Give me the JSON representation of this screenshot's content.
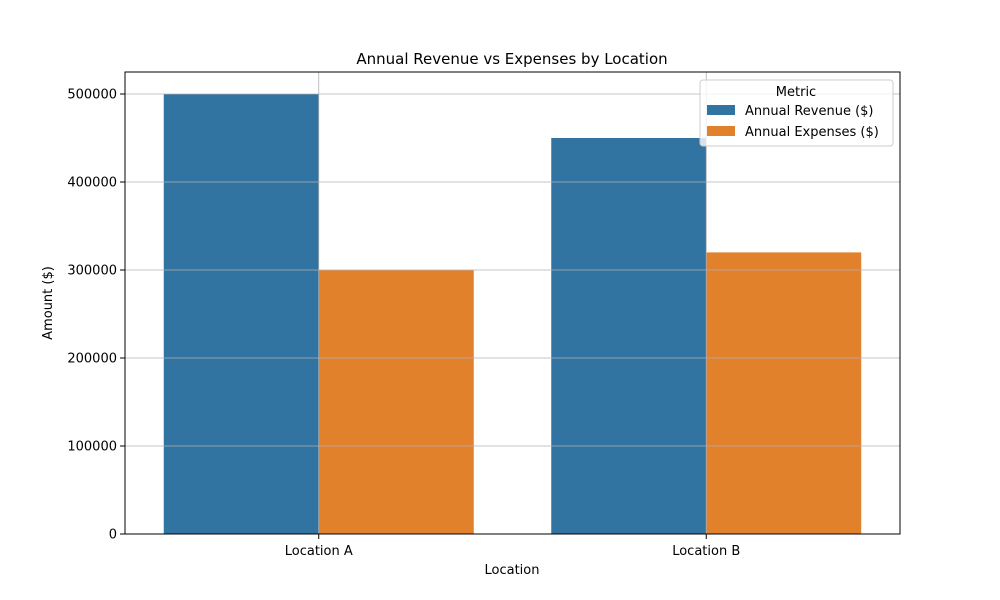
{
  "chart_data": {
    "type": "bar",
    "title": "Annual Revenue vs Expenses by Location",
    "xlabel": "Location",
    "ylabel": "Amount ($)",
    "categories": [
      "Location A",
      "Location B"
    ],
    "series": [
      {
        "name": "Annual Revenue ($)",
        "values": [
          500000,
          450000
        ],
        "color": "#3274a1"
      },
      {
        "name": "Annual Expenses ($)",
        "values": [
          300000,
          320000
        ],
        "color": "#e1812c"
      }
    ],
    "ylim": [
      0,
      525000
    ],
    "yticks": [
      0,
      100000,
      200000,
      300000,
      400000,
      500000
    ],
    "grid": true,
    "legend": {
      "title": "Metric",
      "position": "top-right"
    }
  }
}
